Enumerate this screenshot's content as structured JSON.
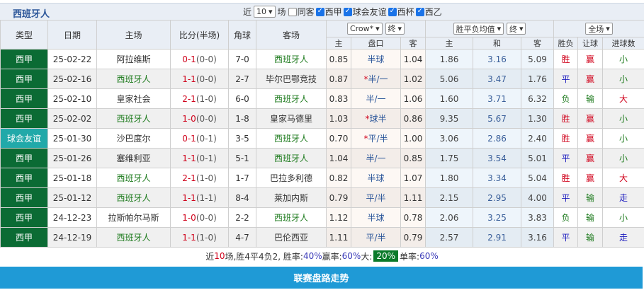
{
  "header": {
    "team": "西班牙人",
    "recent_prefix": "近",
    "recent_count": "10",
    "recent_suffix": "场",
    "filters": [
      {
        "label": "同客",
        "checked": false
      },
      {
        "label": "西甲",
        "checked": true
      },
      {
        "label": "球会友谊",
        "checked": true
      },
      {
        "label": "西杯",
        "checked": true
      },
      {
        "label": "西乙",
        "checked": true
      }
    ]
  },
  "columns": {
    "type": "类型",
    "date": "日期",
    "home": "主场",
    "score": "比分(半场)",
    "corner": "角球",
    "away": "客场",
    "company_select": "Crow*",
    "odds_state_select": "终",
    "eu_select": "胜平负均值",
    "eu_state_select": "终",
    "scope_select": "全场",
    "sub": [
      "主",
      "盘口",
      "客",
      "主",
      "和",
      "客",
      "胜负",
      "让球",
      "进球数"
    ]
  },
  "rows": [
    {
      "type": "西甲",
      "date": "25-02-22",
      "home": "阿拉维斯",
      "score": "0-1",
      "ht": "(0-0)",
      "corner": "7-0",
      "away": "西班牙人",
      "team_side": "away",
      "o_home": "0.85",
      "line": "半球",
      "star": false,
      "o_away": "1.04",
      "e_home": "1.86",
      "e_draw": "3.16",
      "e_away": "5.09",
      "result": "胜",
      "handicap": "赢",
      "goals": "小"
    },
    {
      "type": "西甲",
      "date": "25-02-16",
      "home": "西班牙人",
      "score": "1-1",
      "ht": "(0-0)",
      "corner": "2-7",
      "away": "毕尔巴鄂竞技",
      "team_side": "home",
      "o_home": "0.87",
      "line": "半/一",
      "star": true,
      "o_away": "1.02",
      "e_home": "5.06",
      "e_draw": "3.47",
      "e_away": "1.76",
      "result": "平",
      "handicap": "赢",
      "goals": "小"
    },
    {
      "type": "西甲",
      "date": "25-02-10",
      "home": "皇家社会",
      "score": "2-1",
      "ht": "(1-0)",
      "corner": "6-0",
      "away": "西班牙人",
      "team_side": "away",
      "o_home": "0.83",
      "line": "半/一",
      "star": false,
      "o_away": "1.06",
      "e_home": "1.60",
      "e_draw": "3.71",
      "e_away": "6.32",
      "result": "负",
      "handicap": "输",
      "goals": "大"
    },
    {
      "type": "西甲",
      "date": "25-02-02",
      "home": "西班牙人",
      "score": "1-0",
      "ht": "(0-0)",
      "corner": "1-8",
      "away": "皇家马德里",
      "team_side": "home",
      "o_home": "1.03",
      "line": "球半",
      "star": true,
      "o_away": "0.86",
      "e_home": "9.35",
      "e_draw": "5.67",
      "e_away": "1.30",
      "result": "胜",
      "handicap": "赢",
      "goals": "小"
    },
    {
      "type": "球会友谊",
      "date": "25-01-30",
      "home": "沙巴度尔",
      "score": "0-1",
      "ht": "(0-1)",
      "corner": "3-5",
      "away": "西班牙人",
      "team_side": "away",
      "o_home": "0.70",
      "line": "平/半",
      "star": true,
      "o_away": "1.00",
      "e_home": "3.06",
      "e_draw": "2.86",
      "e_away": "2.40",
      "result": "胜",
      "handicap": "赢",
      "goals": "小"
    },
    {
      "type": "西甲",
      "date": "25-01-26",
      "home": "塞维利亚",
      "score": "1-1",
      "ht": "(0-1)",
      "corner": "5-1",
      "away": "西班牙人",
      "team_side": "away",
      "o_home": "1.04",
      "line": "半/一",
      "star": false,
      "o_away": "0.85",
      "e_home": "1.75",
      "e_draw": "3.54",
      "e_away": "5.01",
      "result": "平",
      "handicap": "赢",
      "goals": "小"
    },
    {
      "type": "西甲",
      "date": "25-01-18",
      "home": "西班牙人",
      "score": "2-1",
      "ht": "(1-0)",
      "corner": "1-7",
      "away": "巴拉多利德",
      "team_side": "home",
      "o_home": "0.82",
      "line": "半球",
      "star": false,
      "o_away": "1.07",
      "e_home": "1.80",
      "e_draw": "3.34",
      "e_away": "5.04",
      "result": "胜",
      "handicap": "赢",
      "goals": "大"
    },
    {
      "type": "西甲",
      "date": "25-01-12",
      "home": "西班牙人",
      "score": "1-1",
      "ht": "(1-1)",
      "corner": "8-4",
      "away": "莱加内斯",
      "team_side": "home",
      "o_home": "0.79",
      "line": "平/半",
      "star": false,
      "o_away": "1.11",
      "e_home": "2.15",
      "e_draw": "2.95",
      "e_away": "4.00",
      "result": "平",
      "handicap": "输",
      "goals": "走"
    },
    {
      "type": "西甲",
      "date": "24-12-23",
      "home": "拉斯帕尔马斯",
      "score": "1-0",
      "ht": "(0-0)",
      "corner": "2-2",
      "away": "西班牙人",
      "team_side": "away",
      "o_home": "1.12",
      "line": "半球",
      "star": false,
      "o_away": "0.78",
      "e_home": "2.06",
      "e_draw": "3.25",
      "e_away": "3.83",
      "result": "负",
      "handicap": "输",
      "goals": "小"
    },
    {
      "type": "西甲",
      "date": "24-12-19",
      "home": "西班牙人",
      "score": "1-1",
      "ht": "(1-0)",
      "corner": "4-7",
      "away": "巴伦西亚",
      "team_side": "home",
      "o_home": "1.11",
      "line": "平/半",
      "star": false,
      "o_away": "0.79",
      "e_home": "2.57",
      "e_draw": "2.91",
      "e_away": "3.16",
      "result": "平",
      "handicap": "输",
      "goals": "走"
    }
  ],
  "summary": {
    "t1": "近",
    "n": "10",
    "t2": "场,胜4平4负2, 胜率:",
    "win_rate": "40%",
    "t3": " 赢率:",
    "cover_rate": "60%",
    "t4": " 大:",
    "over_rate": "20%",
    "t5": " 单率:",
    "odd_rate": "60%"
  },
  "footer_button": "联赛盘路走势",
  "colors": {
    "league": "#0b6b34",
    "friendly": "#21a9a9",
    "accent_bar": "#1f9ad6",
    "win": "#d0021b",
    "draw": "#1a1abe",
    "loss": "#1c7a1c"
  }
}
